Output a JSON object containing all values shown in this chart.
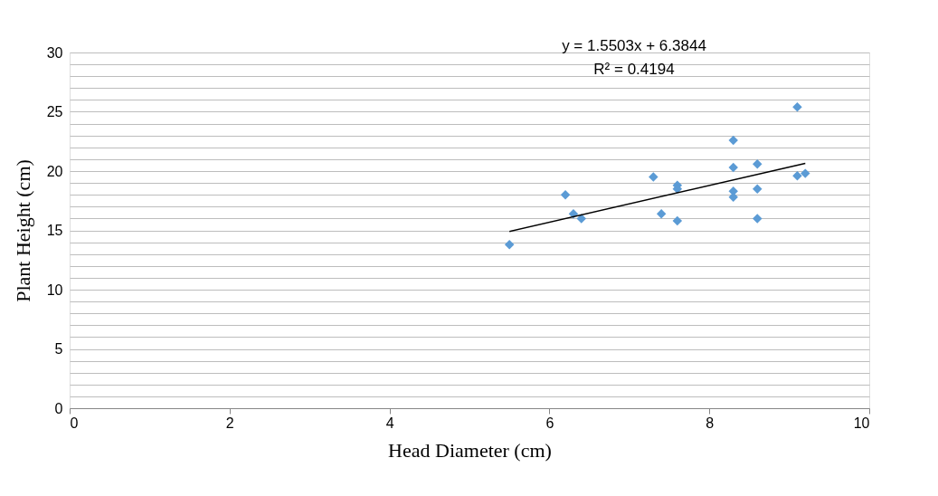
{
  "chart_data": {
    "type": "scatter",
    "xlabel": "Head Diameter (cm)",
    "ylabel": "Plant Height (cm)",
    "annotations": [
      "y = 1.5503x + 6.3844",
      "R² = 0.4194"
    ],
    "series": [
      {
        "marker": "diamond",
        "color": "#5b9bd5",
        "x": [
          5.5,
          6.2,
          6.3,
          6.4,
          7.3,
          7.4,
          7.6,
          7.6,
          7.6,
          8.3,
          8.3,
          8.3,
          8.3,
          8.6,
          8.6,
          8.6,
          9.1,
          9.1,
          9.2
        ],
        "values": [
          13.8,
          18.0,
          16.4,
          16.0,
          19.5,
          16.4,
          18.8,
          18.5,
          15.8,
          22.6,
          20.3,
          18.3,
          17.8,
          20.6,
          18.5,
          16.0,
          25.4,
          19.6,
          19.8
        ]
      },
      {
        "type": "line",
        "line_style": "solid",
        "color": "#000000",
        "x": [
          5.5,
          9.2
        ],
        "values": [
          14.91,
          20.65
        ]
      }
    ],
    "xlim": [
      0,
      10
    ],
    "xticks": [
      0,
      2,
      4,
      6,
      8,
      10
    ],
    "ylim": [
      0,
      30
    ],
    "yticks": [
      0,
      {
        "value": 1,
        "label": null
      },
      {
        "value": 2,
        "label": null
      },
      {
        "value": 3,
        "label": null
      },
      {
        "value": 4,
        "label": null
      },
      5,
      {
        "value": 6,
        "label": null
      },
      {
        "value": 7,
        "label": null
      },
      {
        "value": 8,
        "label": null
      },
      {
        "value": 9,
        "label": null
      },
      10,
      {
        "value": 11,
        "label": null
      },
      {
        "value": 12,
        "label": null
      },
      {
        "value": 13,
        "label": null
      },
      {
        "value": 14,
        "label": null
      },
      15,
      {
        "value": 16,
        "label": null
      },
      {
        "value": 17,
        "label": null
      },
      {
        "value": 18,
        "label": null
      },
      {
        "value": 19,
        "label": null
      },
      20,
      {
        "value": 21,
        "label": null
      },
      {
        "value": 22,
        "label": null
      },
      {
        "value": 23,
        "label": null
      },
      {
        "value": 24,
        "label": null
      },
      25,
      {
        "value": 26,
        "label": null
      },
      {
        "value": 27,
        "label": null
      },
      {
        "value": 28,
        "label": null
      },
      {
        "value": 29,
        "label": null
      },
      30
    ],
    "grid": "y"
  }
}
